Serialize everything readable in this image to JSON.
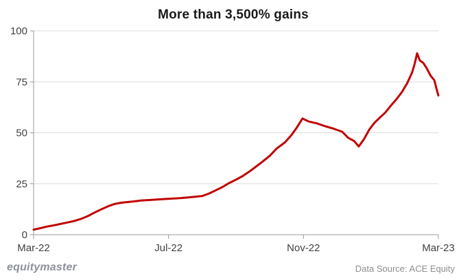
{
  "title": "More than 3,500% gains",
  "footer": {
    "brand": "equitymaster",
    "source": "Data Source: ACE Equity"
  },
  "chart_data": {
    "type": "line",
    "title": "More than 3,500% gains",
    "xlabel": "",
    "ylabel": "",
    "xlim": [
      0,
      12
    ],
    "ylim": [
      0,
      100
    ],
    "x_ticks": [
      {
        "pos": 0,
        "label": "Mar-22"
      },
      {
        "pos": 4,
        "label": "Jul-22"
      },
      {
        "pos": 8,
        "label": "Nov-22"
      },
      {
        "pos": 12,
        "label": "Mar-23"
      }
    ],
    "y_ticks": [
      0,
      25,
      50,
      75,
      100
    ],
    "grid": "horizontal",
    "legend": "none",
    "colors": {
      "line": "#c00000",
      "grid": "#dcdcdc",
      "axis": "#9a9a9a",
      "tick_label": "#404040"
    },
    "series": [
      {
        "name": "price-gain-line",
        "points": [
          [
            0,
            2.5
          ],
          [
            0.2,
            3.2
          ],
          [
            0.4,
            4.0
          ],
          [
            0.6,
            4.6
          ],
          [
            0.8,
            5.3
          ],
          [
            1.0,
            6.0
          ],
          [
            1.2,
            6.7
          ],
          [
            1.4,
            7.7
          ],
          [
            1.6,
            9.1
          ],
          [
            1.8,
            10.8
          ],
          [
            2.0,
            12.4
          ],
          [
            2.2,
            13.9
          ],
          [
            2.4,
            15.1
          ],
          [
            2.6,
            15.7
          ],
          [
            2.9,
            16.2
          ],
          [
            3.2,
            16.8
          ],
          [
            3.5,
            17.1
          ],
          [
            3.8,
            17.4
          ],
          [
            4.1,
            17.7
          ],
          [
            4.4,
            18.0
          ],
          [
            4.7,
            18.5
          ],
          [
            5.0,
            19.0
          ],
          [
            5.2,
            20.2
          ],
          [
            5.4,
            21.8
          ],
          [
            5.6,
            23.4
          ],
          [
            5.8,
            25.4
          ],
          [
            6.0,
            27.0
          ],
          [
            6.2,
            28.8
          ],
          [
            6.4,
            31.0
          ],
          [
            6.6,
            33.5
          ],
          [
            6.8,
            36.0
          ],
          [
            7.0,
            38.7
          ],
          [
            7.2,
            42.2
          ],
          [
            7.45,
            45.3
          ],
          [
            7.65,
            49.0
          ],
          [
            7.8,
            52.5
          ],
          [
            7.97,
            57.0
          ],
          [
            8.15,
            55.6
          ],
          [
            8.4,
            54.6
          ],
          [
            8.65,
            53.2
          ],
          [
            8.9,
            52.0
          ],
          [
            9.15,
            50.5
          ],
          [
            9.33,
            47.5
          ],
          [
            9.5,
            46.0
          ],
          [
            9.64,
            43.3
          ],
          [
            9.8,
            47.0
          ],
          [
            9.95,
            51.5
          ],
          [
            10.1,
            54.8
          ],
          [
            10.27,
            57.5
          ],
          [
            10.43,
            60.0
          ],
          [
            10.6,
            63.5
          ],
          [
            10.76,
            66.5
          ],
          [
            10.92,
            70.0
          ],
          [
            11.08,
            74.5
          ],
          [
            11.22,
            79.5
          ],
          [
            11.3,
            84.0
          ],
          [
            11.37,
            89.0
          ],
          [
            11.45,
            85.5
          ],
          [
            11.55,
            84.3
          ],
          [
            11.65,
            81.8
          ],
          [
            11.77,
            78.0
          ],
          [
            11.88,
            75.8
          ],
          [
            11.94,
            72.0
          ],
          [
            12.0,
            68.3
          ]
        ]
      }
    ]
  }
}
